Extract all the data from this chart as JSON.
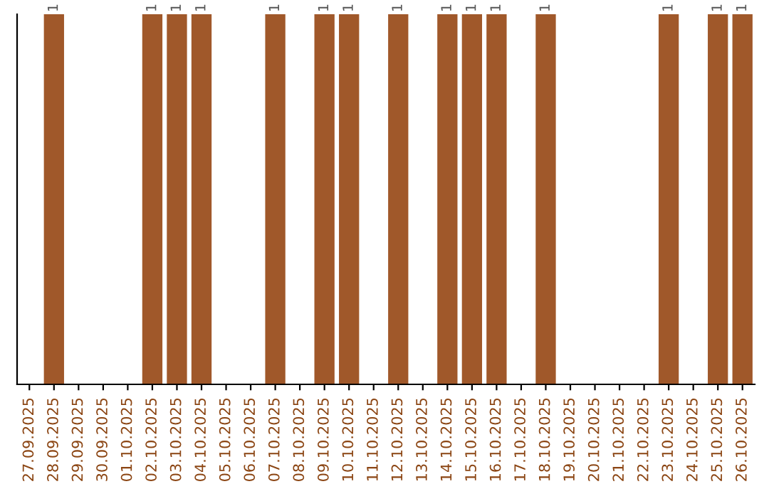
{
  "chart_data": {
    "type": "bar",
    "categories": [
      "27.09.2025",
      "28.09.2025",
      "29.09.2025",
      "30.09.2025",
      "01.10.2025",
      "02.10.2025",
      "03.10.2025",
      "04.10.2025",
      "05.10.2025",
      "06.10.2025",
      "07.10.2025",
      "08.10.2025",
      "09.10.2025",
      "10.10.2025",
      "11.10.2025",
      "12.10.2025",
      "13.10.2025",
      "14.10.2025",
      "15.10.2025",
      "16.10.2025",
      "17.10.2025",
      "18.10.2025",
      "19.10.2025",
      "20.10.2025",
      "21.10.2025",
      "22.10.2025",
      "23.10.2025",
      "24.10.2025",
      "25.10.2025",
      "26.10.2025"
    ],
    "values": [
      0,
      1,
      0,
      0,
      0,
      1,
      1,
      1,
      0,
      0,
      1,
      0,
      1,
      1,
      0,
      1,
      0,
      1,
      1,
      1,
      0,
      1,
      0,
      0,
      0,
      0,
      1,
      0,
      1,
      1
    ],
    "value_labels": [
      null,
      "1",
      null,
      null,
      null,
      "1",
      "1",
      "1",
      null,
      null,
      "1",
      null,
      "1",
      "1",
      null,
      "1",
      null,
      "1",
      "1",
      "1",
      null,
      "1",
      null,
      null,
      null,
      null,
      "1",
      null,
      "1",
      "1"
    ],
    "color": "#a0582a",
    "tick_labels": "x",
    "grid": false
  }
}
